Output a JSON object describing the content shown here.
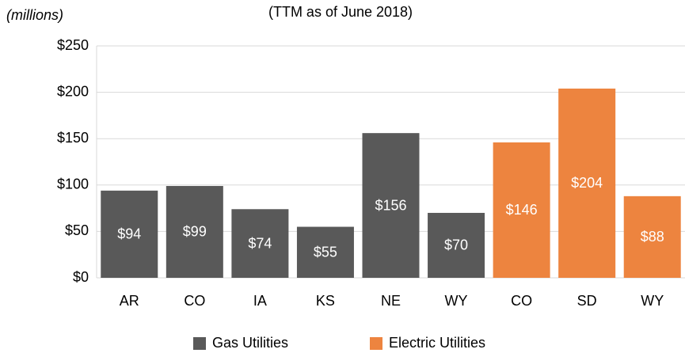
{
  "chart_data": {
    "type": "bar",
    "subtitle": "(TTM as of June 2018)",
    "y_label": "(millions)",
    "categories": [
      "AR",
      "CO",
      "IA",
      "KS",
      "NE",
      "WY",
      "CO",
      "SD",
      "WY"
    ],
    "series": [
      {
        "name": "Gas Utilities",
        "color": "#595959",
        "values": [
          94,
          99,
          74,
          55,
          156,
          70,
          null,
          null,
          null
        ],
        "value_labels": [
          "$94",
          "$99",
          "$74",
          "$55",
          "$156",
          "$70",
          null,
          null,
          null
        ]
      },
      {
        "name": "Electric Utilities",
        "color": "#ed843f",
        "values": [
          null,
          null,
          null,
          null,
          null,
          null,
          146,
          204,
          88
        ],
        "value_labels": [
          null,
          null,
          null,
          null,
          null,
          null,
          "$146",
          "$204",
          "$88"
        ]
      }
    ],
    "ylim": [
      0,
      250
    ],
    "yticks": [
      {
        "value": 0,
        "label": "$0"
      },
      {
        "value": 50,
        "label": "$50"
      },
      {
        "value": 100,
        "label": "$100"
      },
      {
        "value": 150,
        "label": "$150"
      },
      {
        "value": 200,
        "label": "$200"
      },
      {
        "value": 250,
        "label": "$250"
      }
    ],
    "grid": true,
    "legend": "bottom"
  }
}
